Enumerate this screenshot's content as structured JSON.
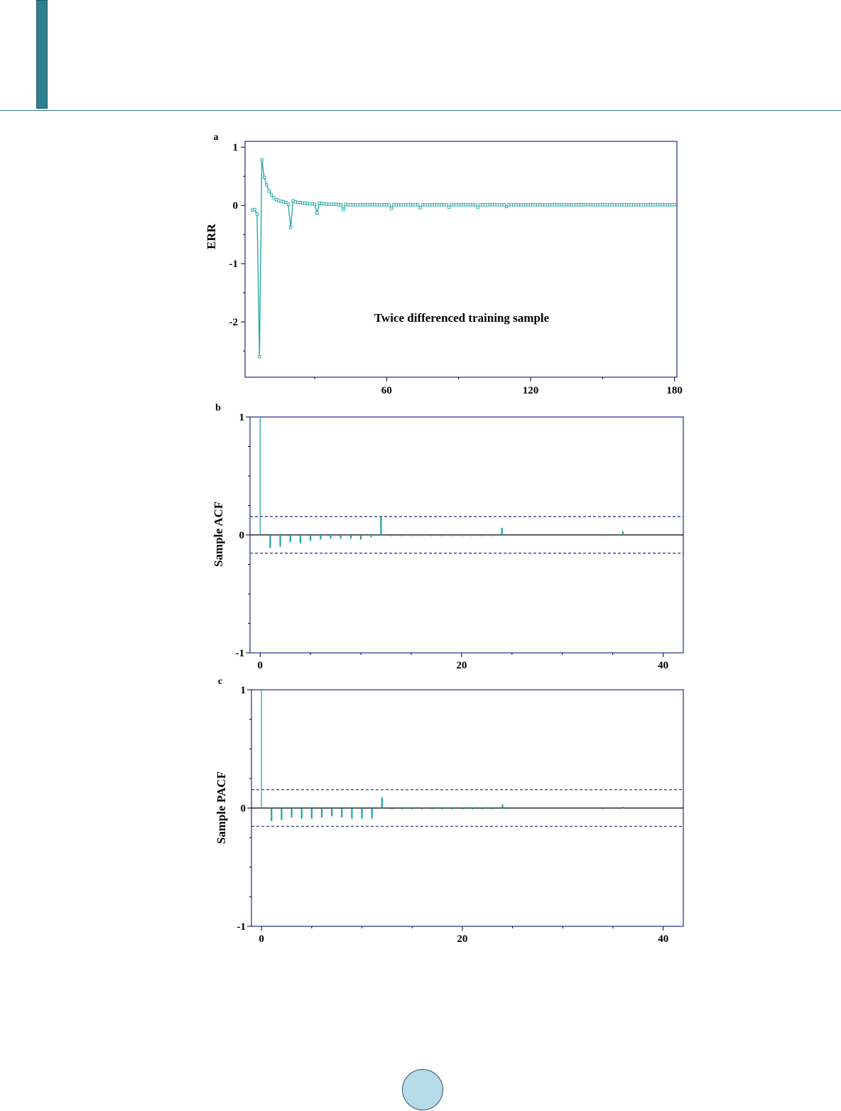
{
  "colors": {
    "accent": "#2f7f8f",
    "series": "#1aa3a3",
    "frame": "#1f2a8a",
    "band": "#1f2a8a",
    "page_circle": "#b7dbe9"
  },
  "chart_data": [
    {
      "panel": "a",
      "type": "line",
      "ylabel": "ERR",
      "annotation": "Twice differenced training sample",
      "xlim": [
        1,
        181
      ],
      "ylim": [
        -2.95,
        1.1
      ],
      "xticks": [
        60,
        120,
        180
      ],
      "yticks": [
        1,
        0,
        -1,
        -2
      ],
      "series_segment": {
        "x": [
          4,
          5,
          6,
          7,
          8,
          9,
          10,
          11,
          12,
          13,
          14,
          15,
          16,
          17,
          18,
          19,
          20,
          21,
          22,
          23,
          24,
          25,
          26,
          27,
          28,
          29,
          30,
          31,
          32,
          33,
          34,
          35,
          36,
          37,
          38,
          39,
          40,
          41,
          42,
          43,
          44,
          45,
          46,
          47,
          48,
          49,
          50
        ],
        "y": [
          -0.08,
          -0.07,
          -0.15,
          -2.6,
          0.78,
          0.48,
          0.35,
          0.25,
          0.18,
          0.13,
          0.1,
          0.08,
          0.07,
          0.06,
          0.05,
          0.02,
          -0.38,
          0.08,
          0.06,
          0.05,
          0.05,
          0.04,
          0.04,
          0.03,
          0.03,
          0.03,
          0.02,
          -0.13,
          0.04,
          0.03,
          0.03,
          0.02,
          0.02,
          0.02,
          0.02,
          0.02,
          0.01,
          0.01,
          -0.07,
          0.02,
          0.01,
          0.01,
          0.01,
          0.01,
          0.01,
          0.01,
          0.01
        ]
      },
      "series_tail": {
        "x_start": 51,
        "x_end": 180,
        "value": 0.01,
        "dips": {
          "62": -0.05,
          "74": -0.04,
          "86": -0.03,
          "98": -0.03,
          "110": -0.02
        }
      }
    },
    {
      "panel": "b",
      "type": "bar",
      "ylabel": "Sample ACF",
      "xlim": [
        -1,
        42
      ],
      "ylim": [
        -1,
        1
      ],
      "xticks": [
        0,
        20,
        40
      ],
      "yticks": [
        1,
        0,
        -1
      ],
      "confidence_band": 0.155,
      "lags": [
        0,
        1,
        2,
        3,
        4,
        5,
        6,
        7,
        8,
        9,
        10,
        11,
        12,
        13,
        14,
        15,
        16,
        17,
        18,
        19,
        20,
        21,
        22,
        23,
        24,
        25,
        26,
        27,
        28,
        29,
        30,
        31,
        32,
        33,
        34,
        35,
        36
      ],
      "values": [
        1.0,
        -0.11,
        -0.1,
        -0.06,
        -0.07,
        -0.05,
        -0.04,
        -0.03,
        -0.03,
        -0.03,
        -0.04,
        -0.02,
        0.15,
        -0.01,
        -0.01,
        -0.01,
        -0.01,
        -0.01,
        -0.01,
        -0.01,
        -0.01,
        -0.01,
        -0.01,
        -0.01,
        0.06,
        0.0,
        0.0,
        0.0,
        0.0,
        0.0,
        0.0,
        0.0,
        0.0,
        0.0,
        -0.01,
        0.0,
        0.03
      ]
    },
    {
      "panel": "c",
      "type": "bar",
      "ylabel": "Sample PACF",
      "xlim": [
        -1,
        42
      ],
      "ylim": [
        -1,
        1
      ],
      "xticks": [
        0,
        20,
        40
      ],
      "yticks": [
        1,
        0,
        -1
      ],
      "confidence_band": 0.155,
      "lags": [
        0,
        1,
        2,
        3,
        4,
        5,
        6,
        7,
        8,
        9,
        10,
        11,
        12,
        13,
        14,
        15,
        16,
        17,
        18,
        19,
        20,
        21,
        22,
        23,
        24,
        25,
        26,
        27,
        28,
        29,
        30,
        31,
        32,
        33,
        34,
        35,
        36
      ],
      "values": [
        1.0,
        -0.11,
        -0.1,
        -0.08,
        -0.09,
        -0.09,
        -0.08,
        -0.07,
        -0.08,
        -0.09,
        -0.09,
        -0.09,
        0.09,
        -0.01,
        -0.01,
        -0.01,
        -0.01,
        -0.01,
        -0.01,
        -0.01,
        -0.01,
        -0.01,
        -0.01,
        -0.01,
        0.03,
        0.0,
        0.0,
        0.0,
        0.0,
        0.0,
        0.0,
        0.0,
        0.0,
        0.0,
        -0.01,
        0.0,
        0.01
      ]
    }
  ]
}
